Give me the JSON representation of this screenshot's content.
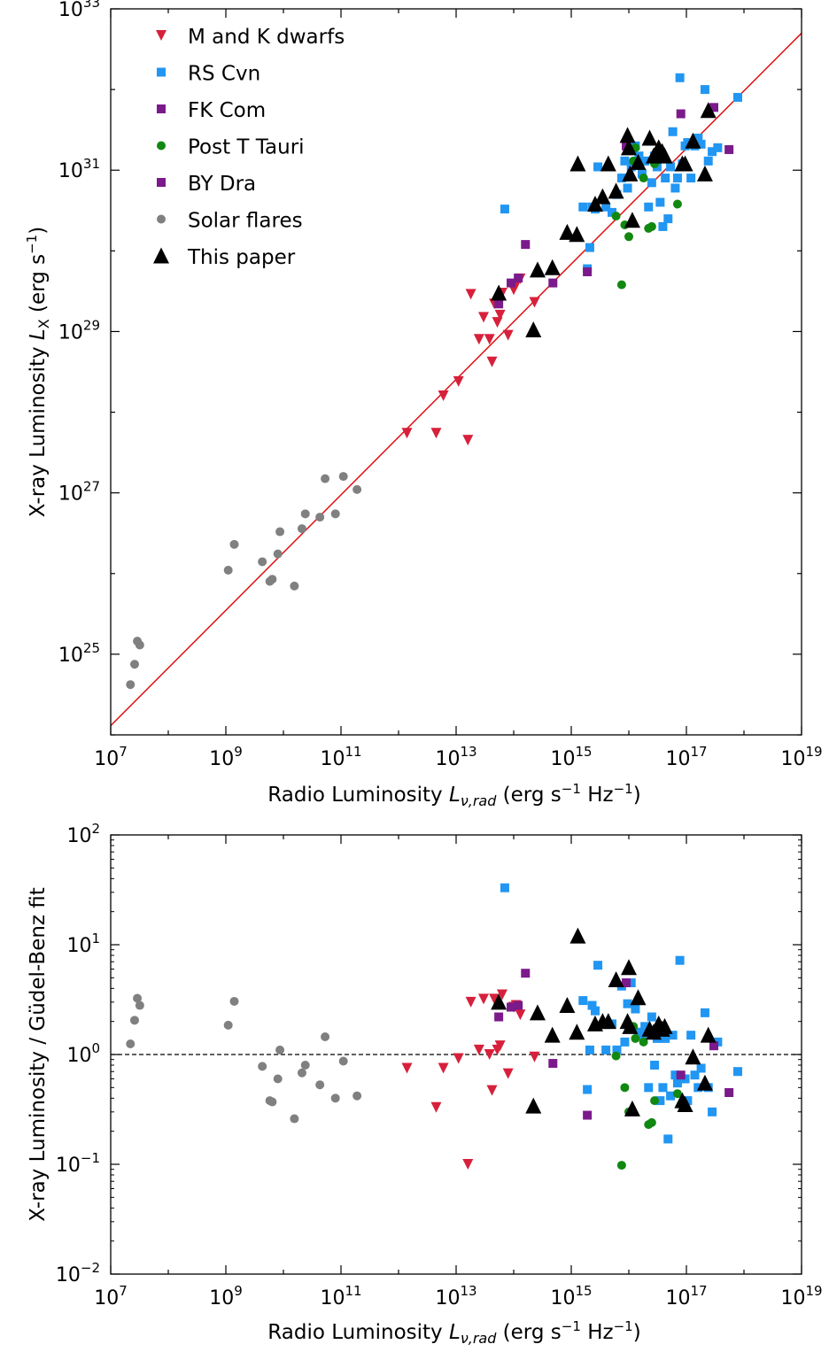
{
  "colors": {
    "M and K dwarfs": "#d7203b",
    "RS Cvn": "#2196f3",
    "FK Com": "#7b1a8b",
    "Post T Tauri": "#118811",
    "BY Dra": "#7b1a8b",
    "Solar flares": "#808080",
    "This paper": "#000000",
    "fit_line": "#e01010"
  },
  "chart_data": [
    {
      "type": "scatter",
      "scale": "log-log",
      "xlabel": "Radio Luminosity L_ν,rad (erg s⁻¹ Hz⁻¹)",
      "ylabel": "X-ray Luminosity L_X (erg s⁻¹)",
      "xlim": [
        10000000.0,
        1e+19
      ],
      "ylim": [
        1e+24,
        1e+33
      ],
      "xticks": [
        "10^7",
        "10^9",
        "10^11",
        "10^13",
        "10^15",
        "10^17",
        "10^19"
      ],
      "yticks": [
        "10^25",
        "10^27",
        "10^29",
        "10^31",
        "10^33"
      ],
      "legend_position": "top-left",
      "fit_line": {
        "x": [
          10000000.0,
          1e+19
        ],
        "y": [
          1.3e+24,
          5e+32
        ]
      },
      "series": [
        {
          "name": "M and K dwarfs",
          "marker": "triangle-down",
          "x": [
            1400000000000.0,
            4500000000000.0,
            6000000000000.0,
            11000000000000.0,
            16000000000000.0,
            18000000000000.0,
            25000000000000.0,
            30000000000000.0,
            38000000000000.0,
            42000000000000.0,
            46000000000000.0,
            52000000000000.0,
            58000000000000.0,
            63000000000000.0,
            80000000000000.0,
            100000000000000.0,
            110000000000000.0,
            130000000000000.0,
            230000000000000.0
          ],
          "y": [
            5.5e+27,
            5.5e+27,
            1.6e+28,
            2.4e+28,
            4.5e+27,
            2.9e+29,
            8e+28,
            1.5e+29,
            8e+28,
            4.2e+28,
            2.2e+29,
            1.3e+29,
            1.6e+29,
            3e+29,
            9e+28,
            3.3e+29,
            3.8e+29,
            4.5e+29,
            2.3e+29
          ]
        },
        {
          "name": "RS Cvn",
          "marker": "square",
          "x": [
            70000000000000.0,
            1600000000000000.0,
            1900000000000000.0,
            2100000000000000.0,
            2300000000000000.0,
            2600000000000000.0,
            2900000000000000.0,
            4000000000000000.0,
            5100000000000000.0,
            6200000000000000.0,
            7500000000000000.0,
            8500000000000000.0,
            9500000000000000.0,
            1.1e+16,
            1.3e+16,
            1.5e+16,
            1.7e+16,
            1.9e+16,
            2.2e+16,
            2.5e+16,
            2.8e+16,
            3.1e+16,
            3.5e+16,
            3.9e+16,
            4.3e+16,
            4.8e+16,
            5.3e+16,
            5.8e+16,
            6.4e+16,
            7e+16,
            7.7e+16,
            8.5e+16,
            9.5e+16,
            1.05e+17,
            1.2e+17,
            1.4e+17,
            1.6e+17,
            1.8e+17,
            2.1e+17,
            2.4e+17,
            2.8e+17,
            3.5e+17,
            7.8e+17
          ],
          "y": [
            3.3e+30,
            3.5e+30,
            6e+29,
            1.1e+30,
            3.5e+30,
            3.3e+30,
            1.1e+31,
            3.5e+30,
            3e+30,
            5e+30,
            8e+30,
            1.3e+31,
            6e+30,
            1.1e+31,
            2e+31,
            1.5e+31,
            9e+30,
            1.3e+31,
            3.5e+30,
            7e+30,
            1.5e+31,
            1.1e+31,
            4e+30,
            2e+30,
            8e+30,
            2.5e+30,
            1.1e+31,
            3e+31,
            6e+30,
            8e+30,
            1.4e+32,
            1.2e+31,
            2e+31,
            2.2e+31,
            8e+30,
            2e+31,
            2.5e+31,
            2.1e+31,
            1e+32,
            1.3e+31,
            1.7e+31,
            1.9e+31,
            8e+31
          ]
        },
        {
          "name": "FK Com",
          "marker": "square",
          "x": [
            1900000000000000.0,
            8e+16,
            3e+17
          ],
          "y": [
            5.5e+29,
            5e+31,
            6e+31
          ]
        },
        {
          "name": "Post T Tauri",
          "marker": "circle",
          "x": [
            6000000000000000.0,
            7500000000000000.0,
            8500000000000000.0,
            1e+16,
            1.2e+16,
            1.3e+16,
            1.8e+16,
            2.2e+16,
            2.5e+16,
            2.8e+16,
            7e+16
          ],
          "y": [
            2.7e+30,
            3.8e+29,
            2.1e+30,
            1.5e+30,
            1.3e+31,
            1.9e+31,
            8e+30,
            1.9e+30,
            2e+30,
            1.2e+31,
            3.8e+30
          ]
        },
        {
          "name": "BY Dra",
          "marker": "square",
          "x": [
            55000000000000.0,
            90000000000000.0,
            120000000000000.0,
            160000000000000.0,
            480000000000000.0,
            9000000000000000.0,
            5.5e+17
          ],
          "y": [
            2.2e+29,
            4e+29,
            4.6e+29,
            1.2e+30,
            4e+29,
            2e+31,
            1.8e+31
          ]
        },
        {
          "name": "Solar flares",
          "marker": "circle",
          "x": [
            22000000.0,
            26000000.0,
            29000000.0,
            32000000.0,
            1100000000.0,
            1400000000.0,
            4300000000.0,
            5800000000.0,
            6400000000.0,
            8000000000.0,
            8700000000.0,
            15500000000.0,
            21000000000.0,
            24000000000.0,
            43000000000.0,
            53000000000.0,
            80000000000.0,
            110000000000.0,
            190000000000.0
          ],
          "y": [
            4.2e+24,
            7.5e+24,
            1.45e+25,
            1.3e+25,
            1.1e+26,
            2.3e+26,
            1.4e+26,
            8e+25,
            8.5e+25,
            1.75e+26,
            3.3e+26,
            7e+25,
            3.6e+26,
            5.5e+26,
            5e+26,
            1.5e+27,
            5.5e+26,
            1.6e+27,
            1.1e+27
          ]
        },
        {
          "name": "This paper",
          "marker": "triangle-up",
          "x": [
            55000000000000.0,
            220000000000000.0,
            260000000000000.0,
            470000000000000.0,
            850000000000000.0,
            1250000000000000.0,
            1300000000000000.0,
            2600000000000000.0,
            3500000000000000.0,
            4400000000000000.0,
            6000000000000000.0,
            9500000000000000.0,
            1e+16,
            1.05e+16,
            1.15e+16,
            1.45e+16,
            2.3e+16,
            2.7e+16,
            3.3e+16,
            3.8e+16,
            4.2e+16,
            8.5e+16,
            9.5e+16,
            1.3e+17,
            2.1e+17,
            2.4e+17
          ],
          "y": [
            3e+29,
            1.05e+29,
            5.8e+29,
            6.2e+29,
            1.7e+30,
            1.6e+30,
            1.2e+31,
            3.8e+30,
            4.7e+30,
            1.2e+31,
            5.5e+30,
            2.7e+31,
            1.9e+31,
            9e+30,
            2.4e+30,
            1.25e+31,
            2.5e+31,
            1.5e+31,
            1.9e+31,
            1.7e+31,
            1.5e+31,
            1.2e+31,
            1.2e+31,
            2.3e+31,
            9e+30,
            5.5e+31
          ]
        }
      ]
    },
    {
      "type": "scatter",
      "scale": "log-log",
      "xlabel": "Radio Luminosity L_ν,rad (erg s⁻¹ Hz⁻¹)",
      "ylabel": "X-ray Luminosity / Güdel-Benz fit",
      "xlim": [
        10000000.0,
        1e+19
      ],
      "ylim": [
        0.01,
        100
      ],
      "xticks": [
        "10^7",
        "10^9",
        "10^11",
        "10^13",
        "10^15",
        "10^17",
        "10^19"
      ],
      "yticks": [
        "10^-2",
        "10^-1",
        "10^0",
        "10^1",
        "10^2"
      ],
      "reference_line": 1,
      "series": [
        {
          "name": "M and K dwarfs",
          "marker": "triangle-down",
          "x": [
            1400000000000.0,
            4500000000000.0,
            6000000000000.0,
            11000000000000.0,
            16000000000000.0,
            18000000000000.0,
            25000000000000.0,
            30000000000000.0,
            38000000000000.0,
            42000000000000.0,
            46000000000000.0,
            52000000000000.0,
            58000000000000.0,
            63000000000000.0,
            80000000000000.0,
            100000000000000.0,
            110000000000000.0,
            130000000000000.0,
            230000000000000.0
          ],
          "y": [
            0.75,
            0.33,
            0.75,
            0.92,
            0.1,
            3,
            1.1,
            3.2,
            1.0,
            0.47,
            3.2,
            1.1,
            1.2,
            3.5,
            0.67,
            2.7,
            2.8,
            2.3,
            0.95
          ]
        },
        {
          "name": "RS Cvn",
          "marker": "square",
          "x": [
            70000000000000.0,
            1600000000000000.0,
            1900000000000000.0,
            2100000000000000.0,
            2300000000000000.0,
            2600000000000000.0,
            2900000000000000.0,
            4000000000000000.0,
            5100000000000000.0,
            6200000000000000.0,
            7500000000000000.0,
            8500000000000000.0,
            9500000000000000.0,
            1.1e+16,
            1.3e+16,
            1.5e+16,
            1.7e+16,
            1.9e+16,
            2.2e+16,
            2.5e+16,
            2.8e+16,
            3.1e+16,
            3.5e+16,
            3.9e+16,
            4.3e+16,
            4.8e+16,
            5.3e+16,
            5.8e+16,
            6.4e+16,
            7e+16,
            7.7e+16,
            8.5e+16,
            9.5e+16,
            1.05e+17,
            1.2e+17,
            1.4e+17,
            1.6e+17,
            1.8e+17,
            2.1e+17,
            2.4e+17,
            2.8e+17,
            3.5e+17,
            7.8e+17
          ],
          "y": [
            33,
            3.1,
            0.48,
            1.1,
            2.8,
            2.5,
            6.5,
            1.1,
            1.9,
            1.1,
            4.2,
            1.3,
            2.9,
            4.5,
            2.6,
            1.6,
            1.5,
            1.8,
            0.5,
            2.2,
            0.8,
            1.4,
            0.38,
            0.5,
            1.4,
            0.17,
            0.42,
            1.5,
            0.65,
            0.55,
            7.2,
            0.6,
            0.6,
            0.38,
            1.5,
            0.65,
            0.5,
            0.75,
            2.4,
            0.5,
            0.3,
            1.3,
            0.7
          ]
        },
        {
          "name": "FK Com",
          "marker": "square",
          "x": [
            1900000000000000.0,
            8e+16,
            3e+17
          ],
          "y": [
            0.28,
            0.65,
            1.2
          ]
        },
        {
          "name": "Post T Tauri",
          "marker": "circle",
          "x": [
            6000000000000000.0,
            7500000000000000.0,
            8500000000000000.0,
            1e+16,
            1.2e+16,
            1.3e+16,
            1.8e+16,
            2.2e+16,
            2.5e+16,
            2.8e+16,
            7e+16
          ],
          "y": [
            0.97,
            0.098,
            0.5,
            0.3,
            1.8,
            1.4,
            1.3,
            0.23,
            0.24,
            0.38,
            0.44
          ]
        },
        {
          "name": "BY Dra",
          "marker": "square",
          "x": [
            55000000000000.0,
            90000000000000.0,
            120000000000000.0,
            160000000000000.0,
            480000000000000.0,
            9000000000000000.0,
            5.5e+17
          ],
          "y": [
            2.2,
            2.7,
            2.8,
            5.5,
            0.83,
            4.5,
            0.45
          ]
        },
        {
          "name": "Solar flares",
          "marker": "circle",
          "x": [
            22000000.0,
            26000000.0,
            29000000.0,
            32000000.0,
            1100000000.0,
            1400000000.0,
            4300000000.0,
            5800000000.0,
            6400000000.0,
            8000000000.0,
            8700000000.0,
            15500000000.0,
            21000000000.0,
            24000000000.0,
            43000000000.0,
            53000000000.0,
            80000000000.0,
            110000000000.0,
            190000000000.0
          ],
          "y": [
            1.25,
            2.05,
            3.25,
            2.8,
            1.85,
            3.05,
            0.78,
            0.38,
            0.37,
            0.6,
            1.1,
            0.26,
            0.68,
            0.8,
            0.53,
            1.45,
            0.4,
            0.87,
            0.42
          ]
        },
        {
          "name": "This paper",
          "marker": "triangle-up",
          "x": [
            55000000000000.0,
            220000000000000.0,
            260000000000000.0,
            470000000000000.0,
            850000000000000.0,
            1250000000000000.0,
            1300000000000000.0,
            2600000000000000.0,
            3500000000000000.0,
            4400000000000000.0,
            6000000000000000.0,
            9500000000000000.0,
            1e+16,
            1.05e+16,
            1.15e+16,
            1.45e+16,
            2.3e+16,
            2.7e+16,
            3.3e+16,
            3.8e+16,
            4.2e+16,
            8.5e+16,
            9.5e+16,
            1.3e+17,
            2.1e+17,
            2.4e+17
          ],
          "y": [
            3.0,
            0.34,
            2.4,
            1.5,
            2.8,
            1.6,
            12,
            1.9,
            2,
            2,
            4.8,
            2,
            6.2,
            1.8,
            0.32,
            3.3,
            1.7,
            1.6,
            1.9,
            1.7,
            1.8,
            0.38,
            0.35,
            0.95,
            0.55,
            1.5
          ]
        }
      ]
    }
  ],
  "legend": [
    {
      "label": "M and K dwarfs",
      "marker": "triangle-down"
    },
    {
      "label": "RS Cvn",
      "marker": "square"
    },
    {
      "label": "FK Com",
      "marker": "square"
    },
    {
      "label": "Post T Tauri",
      "marker": "circle"
    },
    {
      "label": "BY Dra",
      "marker": "square"
    },
    {
      "label": "Solar flares",
      "marker": "circle"
    },
    {
      "label": "This paper",
      "marker": "triangle-up"
    }
  ],
  "top_panel": {
    "ylabel_prefix": "X-ray Luminosity ",
    "ylabel_sym": "L",
    "ylabel_sub": "X",
    "ylabel_unit_open": " (erg s",
    "ylabel_unit_exp": "−1",
    "ylabel_unit_close": ")"
  },
  "bottom_panel": {
    "ylabel": "X-ray Luminosity / Güdel-Benz fit"
  },
  "xaxis_label": {
    "prefix": "Radio Luminosity ",
    "sym": "L",
    "sub": "ν,rad",
    "unit_a": " (erg s",
    "exp_a": "−1",
    "unit_b": " Hz",
    "exp_b": "−1",
    "close": ")"
  },
  "tick_labels": {
    "x": [
      {
        "base": "10",
        "exp": "7"
      },
      {
        "base": "10",
        "exp": "9"
      },
      {
        "base": "10",
        "exp": "11"
      },
      {
        "base": "10",
        "exp": "13"
      },
      {
        "base": "10",
        "exp": "15"
      },
      {
        "base": "10",
        "exp": "17"
      },
      {
        "base": "10",
        "exp": "19"
      }
    ],
    "top_y": [
      {
        "base": "10",
        "exp": "25"
      },
      {
        "base": "10",
        "exp": "27"
      },
      {
        "base": "10",
        "exp": "29"
      },
      {
        "base": "10",
        "exp": "31"
      },
      {
        "base": "10",
        "exp": "33"
      }
    ],
    "bottom_y": [
      {
        "base": "10",
        "exp": "−2"
      },
      {
        "base": "10",
        "exp": "−1"
      },
      {
        "base": "10",
        "exp": "0"
      },
      {
        "base": "10",
        "exp": "1"
      },
      {
        "base": "10",
        "exp": "2"
      }
    ]
  }
}
